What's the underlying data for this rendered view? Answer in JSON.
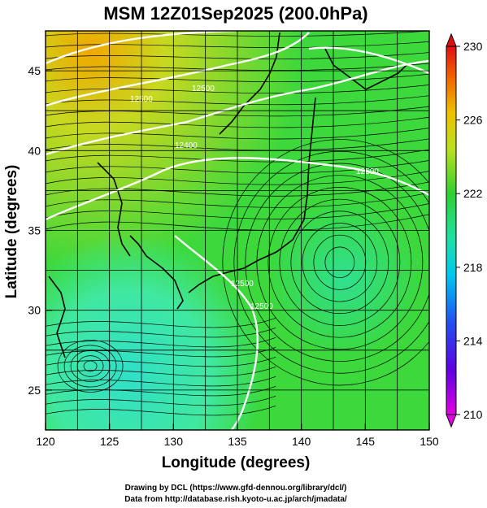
{
  "title": "MSM 12Z01Sep2025 (200.0hPa)",
  "xaxis": {
    "label": "Longitude (degrees)",
    "range": [
      120,
      150
    ],
    "ticks": [
      "120",
      "125",
      "130",
      "135",
      "140",
      "145",
      "150"
    ]
  },
  "yaxis": {
    "label": "Latitude  (degrees)",
    "range": [
      22.5,
      47.5
    ],
    "ticks": [
      "25",
      "30",
      "35",
      "40",
      "45"
    ]
  },
  "colorbar": {
    "range": [
      210,
      230
    ],
    "ticks": [
      "210",
      "214",
      "218",
      "222",
      "226",
      "230"
    ],
    "colors": [
      "#e000e0",
      "#3030f0",
      "#00c8ff",
      "#20e0a0",
      "#30d030",
      "#b8e020",
      "#f0c000",
      "#f06000",
      "#e01010"
    ]
  },
  "contour_labels": [
    "12500",
    "12400",
    "12500",
    "12500",
    "12500",
    "12500"
  ],
  "credits": {
    "line1": "Drawing by DCL (https://www.gfd-dennou.org/library/dcl/)",
    "line2": "Data from http://database.rish.kyoto-u.ac.jp/arch/jmadata/"
  },
  "colors": {
    "field_low": "#30e8c0",
    "field_mid": "#3cd83c",
    "field_high": "#f0a000",
    "contour": "#ffffff",
    "streamline": "#000000"
  }
}
